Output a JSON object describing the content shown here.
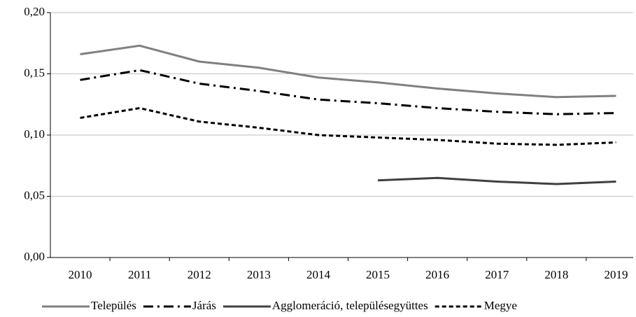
{
  "chart_data": {
    "type": "line",
    "categories": [
      "2010",
      "2011",
      "2012",
      "2013",
      "2014",
      "2015",
      "2016",
      "2017",
      "2018",
      "2019"
    ],
    "series": [
      {
        "name": "Település",
        "color": "#808080",
        "width": 3,
        "dash": "",
        "values": [
          0.166,
          0.173,
          0.16,
          0.155,
          0.147,
          0.143,
          0.138,
          0.134,
          0.131,
          0.132
        ]
      },
      {
        "name": "Járás",
        "color": "#000000",
        "width": 3,
        "dash": "14 6 3 6",
        "values": [
          0.145,
          0.153,
          0.142,
          0.136,
          0.129,
          0.126,
          0.122,
          0.119,
          0.117,
          0.118
        ]
      },
      {
        "name": "Agglomeráció, településegyüttes",
        "color": "#404040",
        "width": 3,
        "dash": "",
        "values": [
          null,
          null,
          null,
          null,
          null,
          0.063,
          0.065,
          0.062,
          0.06,
          0.062
        ]
      },
      {
        "name": "Megye",
        "color": "#000000",
        "width": 3,
        "dash": "6 4",
        "values": [
          0.114,
          0.122,
          0.111,
          0.106,
          0.1,
          0.098,
          0.096,
          0.093,
          0.092,
          0.094
        ]
      }
    ],
    "ylim": [
      0,
      0.2
    ],
    "yticks": [
      {
        "value": 0,
        "label": "0,00"
      },
      {
        "value": 0.05,
        "label": "0,05"
      },
      {
        "value": 0.1,
        "label": "0,10"
      },
      {
        "value": 0.15,
        "label": "0,15"
      },
      {
        "value": 0.2,
        "label": "0,20"
      }
    ],
    "grid": true,
    "legend": "bottom"
  }
}
